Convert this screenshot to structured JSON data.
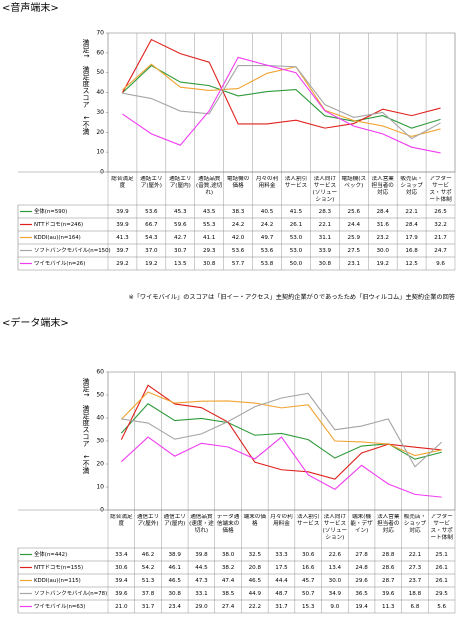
{
  "chart_data": [
    {
      "type": "line",
      "title": "<音声端末>",
      "y_label": "満足↑　満足度スコア　↓不満",
      "categories": [
        "総合満足度",
        "通話エリア(屋外)",
        "通話エリア(屋内)",
        "通話品質(音質,途切れ)",
        "電話機の価格",
        "月々の利用料金",
        "法人割引サービス",
        "法人向けサービス(ソリューション)",
        "電話機(スペック)",
        "法人営業担当者の対応",
        "販売店・ショップ対応",
        "アフターサービス・サポート体制"
      ],
      "ylim": [
        0,
        70
      ],
      "yticks": [
        0,
        10,
        20,
        30,
        40,
        50,
        60,
        70
      ],
      "series": [
        {
          "name": "全体(n=590)",
          "color": "#2e9a3a",
          "values": [
            39.9,
            53.6,
            45.3,
            43.5,
            38.3,
            40.5,
            41.5,
            28.3,
            25.6,
            28.4,
            22.1,
            26.5
          ]
        },
        {
          "name": "NTTドコモ(n=246)",
          "color": "#e0201c",
          "values": [
            39.9,
            66.7,
            59.6,
            55.3,
            24.2,
            24.2,
            26.1,
            22.1,
            24.4,
            31.6,
            28.4,
            32.2
          ]
        },
        {
          "name": "KDDI(au)(n=164)",
          "color": "#f0a432",
          "values": [
            41.3,
            54.3,
            42.7,
            41.1,
            42.0,
            49.7,
            53.0,
            31.1,
            25.9,
            23.2,
            17.9,
            21.7
          ],
          "value_labels": [
            "41.3",
            "54.3",
            "42.7",
            "41.1",
            "42.0",
            "49.7",
            "53.0",
            "31.1",
            "25.9",
            "23.2",
            "17.9",
            "21.7"
          ]
        },
        {
          "name": "ソフトバンクモバイル(n=150)",
          "color": "#a6a6a6",
          "values": [
            39.7,
            37.0,
            30.7,
            29.3,
            53.6,
            53.6,
            53.0,
            33.9,
            27.5,
            30.0,
            16.8,
            24.7
          ],
          "value_labels": [
            "39.7",
            "37.0",
            "30.7",
            "29.3",
            "53.6",
            "53.6",
            "53.0",
            "33.9",
            "27.5",
            "30.0",
            "16.8",
            "24.7"
          ]
        },
        {
          "name": "ワイモバイル(n=26)",
          "color": "#f03cf0",
          "values": [
            29.2,
            19.2,
            13.5,
            30.8,
            57.7,
            53.8,
            50.0,
            30.8,
            23.1,
            19.2,
            12.5,
            9.6
          ],
          "value_labels": [
            "29.2",
            "19.2",
            "13.5",
            "30.8",
            "57.7",
            "53.8",
            "50.0",
            "30.8",
            "23.1",
            "19.2",
            "12.5",
            "9.6"
          ]
        }
      ],
      "note": "※「ワイモバイル」のスコアは「旧イー・アクセス」主契約企業が０であったため「旧ウィルコム」主契約企業の回答"
    },
    {
      "type": "line",
      "title": "<データ端末>",
      "y_label": "満足↑　満足度スコア　↓不満",
      "categories": [
        "総合満足度",
        "通信エリア(屋外)",
        "通信エリア(屋内)",
        "通信品質(速度・途切れ)",
        "データ通信端末の価格",
        "端末の価格",
        "月々の利用料金",
        "法人割引サービス",
        "法人向けサービス(ソリューション)",
        "端末(機能・デザイン)",
        "法人営業担当者の対応",
        "販売店・ショップ対応",
        "アフターサービス・サポート体制"
      ],
      "ylim": [
        0,
        60
      ],
      "yticks": [
        0,
        10,
        20,
        30,
        40,
        50,
        60
      ],
      "series": [
        {
          "name": "全体(n=442)",
          "color": "#2e9a3a",
          "values": [
            33.4,
            46.2,
            38.9,
            39.8,
            38.0,
            32.5,
            33.3,
            30.6,
            22.6,
            27.8,
            28.8,
            22.1,
            25.1
          ],
          "value_labels": [
            "33.4",
            "46.2",
            "38.9",
            "39.8",
            "38.0",
            "32.5",
            "33.3",
            "30.6",
            "22.6",
            "27.8",
            "28.8",
            "22.1",
            "25.1"
          ]
        },
        {
          "name": "NTTドコモ(n=155)",
          "color": "#e0201c",
          "values": [
            30.6,
            54.2,
            46.1,
            44.5,
            38.2,
            20.8,
            17.5,
            16.6,
            13.4,
            24.8,
            28.6,
            27.3,
            26.1
          ]
        },
        {
          "name": "KDDI(au)(n=115)",
          "color": "#f0a432",
          "values": [
            39.4,
            51.3,
            46.5,
            47.3,
            47.4,
            46.5,
            44.4,
            45.7,
            30.0,
            29.6,
            28.7,
            23.7,
            26.1
          ],
          "value_labels": [
            "39.4",
            "51.3",
            "46.5",
            "47.3",
            "47.4",
            "46.5",
            "44.4",
            "45.7",
            "30.0",
            "29.6",
            "28.7",
            "23.7",
            "26.1"
          ]
        },
        {
          "name": "ソフトバンクモバイル(n=78)",
          "color": "#a6a6a6",
          "values": [
            39.6,
            37.8,
            30.8,
            33.1,
            38.5,
            44.9,
            48.7,
            50.7,
            34.9,
            36.5,
            39.6,
            18.8,
            29.5
          ]
        },
        {
          "name": "ワイモバイル(n=63)",
          "color": "#f03cf0",
          "values": [
            21.0,
            31.7,
            23.4,
            29.0,
            27.4,
            22.2,
            31.7,
            15.3,
            9.0,
            19.4,
            11.3,
            6.8,
            5.6
          ],
          "value_labels": [
            "21.0",
            "31.7",
            "23.4",
            "29.0",
            "27.4",
            "22.2",
            "31.7",
            "15.3",
            "9.0",
            "19.4",
            "11.3",
            "6.8",
            "5.6"
          ]
        }
      ]
    }
  ]
}
